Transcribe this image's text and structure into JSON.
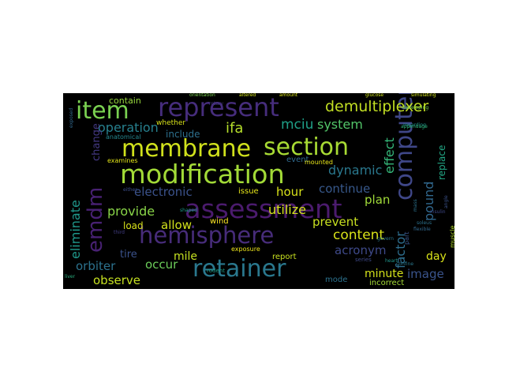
{
  "words": [
    {
      "text": "assessment",
      "color": "#4b1b6e"
    },
    {
      "text": "modification",
      "color": "#a2da37"
    },
    {
      "text": "represent",
      "color": "#462d7c"
    },
    {
      "text": "membrane",
      "color": "#d0e11c"
    },
    {
      "text": "section",
      "color": "#a8db34"
    },
    {
      "text": "computer",
      "color": "#3f4788"
    },
    {
      "text": "hemisphere",
      "color": "#472c7a"
    },
    {
      "text": "retainer",
      "color": "#2a788e"
    },
    {
      "text": "item",
      "color": "#7ad151"
    },
    {
      "text": "emdm",
      "color": "#482173"
    },
    {
      "text": "demultiplexer",
      "color": "#c2df23"
    },
    {
      "text": "operation",
      "color": "#27808e"
    },
    {
      "text": "system",
      "color": "#52c569"
    },
    {
      "text": "mciu",
      "color": "#1fa088"
    },
    {
      "text": "ifa",
      "color": "#b5de2b"
    },
    {
      "text": "content",
      "color": "#d8e219"
    },
    {
      "text": "dynamic",
      "color": "#2a788e"
    },
    {
      "text": "effect",
      "color": "#35b779"
    },
    {
      "text": "pound",
      "color": "#31688e"
    },
    {
      "text": "replace",
      "color": "#22a785"
    },
    {
      "text": "electronic",
      "color": "#3b528b"
    },
    {
      "text": "continue",
      "color": "#38598c"
    },
    {
      "text": "eliminate",
      "color": "#1f988b"
    },
    {
      "text": "provide",
      "color": "#89d548"
    },
    {
      "text": "allow",
      "color": "#d2e21b"
    },
    {
      "text": "hour",
      "color": "#d8e219"
    },
    {
      "text": "utilize",
      "color": "#d2e21b"
    },
    {
      "text": "prevent",
      "color": "#c8e020"
    },
    {
      "text": "plan",
      "color": "#a0da39"
    },
    {
      "text": "factor",
      "color": "#2e6e8e"
    },
    {
      "text": "acronym",
      "color": "#3e4989"
    },
    {
      "text": "image",
      "color": "#3a548c"
    },
    {
      "text": "minute",
      "color": "#d5e21a"
    },
    {
      "text": "day",
      "color": "#d8e219"
    },
    {
      "text": "orbiter",
      "color": "#2c728e"
    },
    {
      "text": "occur",
      "color": "#6ccd5a"
    },
    {
      "text": "observe",
      "color": "#c5e021"
    },
    {
      "text": "mile",
      "color": "#c5e021"
    },
    {
      "text": "tire",
      "color": "#3b528b"
    },
    {
      "text": "load",
      "color": "#d8e219"
    },
    {
      "text": "include",
      "color": "#2d708e"
    },
    {
      "text": "change",
      "color": "#443983"
    },
    {
      "text": "contain",
      "color": "#98d83e"
    },
    {
      "text": "whether",
      "color": "#d8e219"
    },
    {
      "text": "event",
      "color": "#306a8e"
    },
    {
      "text": "issue",
      "color": "#e5e419"
    },
    {
      "text": "wind",
      "color": "#fde725"
    },
    {
      "text": "report",
      "color": "#c8e020"
    },
    {
      "text": "mode",
      "color": "#2c728e"
    },
    {
      "text": "incorrect",
      "color": "#a5db36"
    },
    {
      "text": "series",
      "color": "#3e4989"
    },
    {
      "text": "exposure",
      "color": "#ece51b"
    },
    {
      "text": "examines",
      "color": "#e2e418"
    },
    {
      "text": "anatomical",
      "color": "#24868e"
    },
    {
      "text": "mounted",
      "color": "#e7e419"
    },
    {
      "text": "part",
      "color": "#39568c"
    },
    {
      "text": "muscle",
      "color": "#b5de2b"
    },
    {
      "text": "rodent",
      "color": "#1f9e89"
    },
    {
      "text": "exposed",
      "color": "#31688e"
    },
    {
      "text": "orientation",
      "color": "#7ad151"
    },
    {
      "text": "glucose",
      "color": "#cde11d"
    },
    {
      "text": "simulating",
      "color": "#d0e11c"
    },
    {
      "text": "developing",
      "color": "#7ad151"
    },
    {
      "text": "regarding",
      "color": "#20928c"
    },
    {
      "text": "appendage",
      "color": "#2fb47c"
    },
    {
      "text": "insulin",
      "color": "#3e4989"
    },
    {
      "text": "mass",
      "color": "#2c728e"
    },
    {
      "text": "shaped",
      "color": "#1f9a8a"
    },
    {
      "text": "third",
      "color": "#433e85"
    },
    {
      "text": "either",
      "color": "#3d4e8a"
    },
    {
      "text": "liver",
      "color": "#29af7f"
    },
    {
      "text": "govern",
      "color": "#2a788e"
    },
    {
      "text": "heart",
      "color": "#1f958b"
    },
    {
      "text": "soleus",
      "color": "#2c728e"
    },
    {
      "text": "amount",
      "color": "#d8e219"
    },
    {
      "text": "confine",
      "color": "#2a788e"
    },
    {
      "text": "rotary",
      "color": "#443983"
    },
    {
      "text": "flexible",
      "color": "#31688e"
    },
    {
      "text": "angle",
      "color": "#3b528b"
    },
    {
      "text": "altered",
      "color": "#d0e11c"
    }
  ]
}
